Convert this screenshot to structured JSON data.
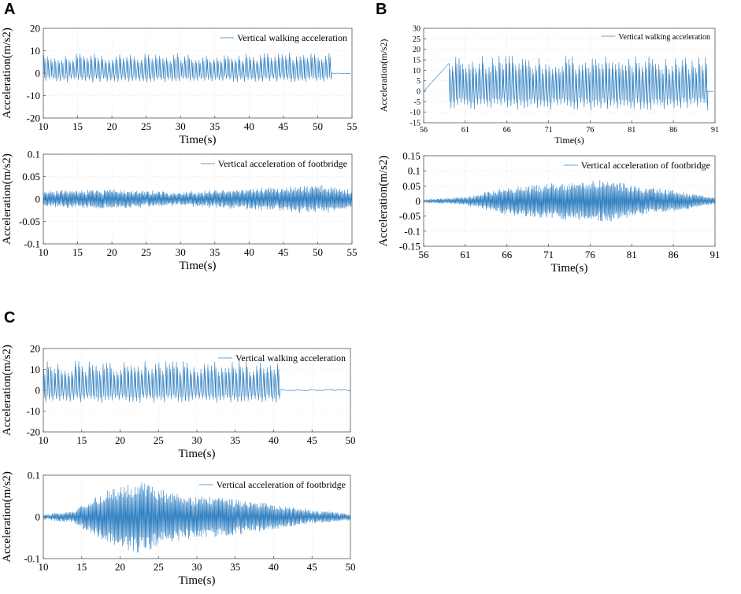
{
  "panels": [
    {
      "label": "A"
    },
    {
      "label": "B"
    },
    {
      "label": "C"
    }
  ],
  "colors": {
    "signal": "#2f7fc1",
    "signal_light": "#7bb6e3",
    "grid": "#dcdcdc",
    "axis": "#555555"
  },
  "chart_data": [
    {
      "panel": "A",
      "type": "line",
      "title": "",
      "xlabel": "Time(s)",
      "ylabel": "Acceleration(m/s2)",
      "legend": "Vertical walking acceleration",
      "legend_position": "top-right",
      "xlim": [
        10,
        55
      ],
      "ylim": [
        -20,
        20
      ],
      "xticks": [
        10,
        15,
        20,
        25,
        30,
        35,
        40,
        45,
        50,
        55
      ],
      "yticks": [
        -20,
        -10,
        0,
        10,
        20
      ],
      "grid": true,
      "signal": {
        "active_start": 10,
        "active_end": 52,
        "amplitude_pos": 9,
        "amplitude_neg": -4,
        "step_frequency_hz": 1.9,
        "rest_level": 0
      }
    },
    {
      "panel": "A",
      "type": "line",
      "title": "",
      "xlabel": "Time(s)",
      "ylabel": "Acceleration(m/s2)",
      "legend": "Vertical acceleration of footbridge",
      "legend_position": "top-right",
      "xlim": [
        10,
        55
      ],
      "ylim": [
        -0.1,
        0.1
      ],
      "xticks": [
        10,
        15,
        20,
        25,
        30,
        35,
        40,
        45,
        50,
        55
      ],
      "yticks": [
        -0.1,
        -0.05,
        0,
        0.05,
        0.1
      ],
      "grid": true,
      "signal": {
        "envelope": [
          [
            10,
            0.018
          ],
          [
            20,
            0.02
          ],
          [
            30,
            0.014
          ],
          [
            40,
            0.022
          ],
          [
            50,
            0.03
          ],
          [
            55,
            0.02
          ]
        ],
        "noise": 0.006
      }
    },
    {
      "panel": "B",
      "type": "line",
      "title": "",
      "xlabel": "Time(s)",
      "ylabel": "Acceleration(m/s2)",
      "legend": "Vertical walking acceleration",
      "legend_position": "top-right",
      "xlim": [
        56,
        91
      ],
      "ylim": [
        -15,
        30
      ],
      "xticks": [
        56,
        61,
        66,
        71,
        76,
        81,
        86,
        91
      ],
      "yticks": [
        -15,
        -10,
        -5,
        0,
        5,
        10,
        15,
        20,
        25,
        30
      ],
      "grid": true,
      "signal": {
        "active_start": 59,
        "active_end": 90,
        "amplitude_pos": 17,
        "amplitude_neg": -9,
        "step_frequency_hz": 2.5,
        "rest_level": 0
      }
    },
    {
      "panel": "B",
      "type": "line",
      "title": "",
      "xlabel": "Time(s)",
      "ylabel": "Acceleration(m/s2)",
      "legend": "Vertical acceleration of footbridge",
      "legend_position": "top-right",
      "xlim": [
        56,
        91
      ],
      "ylim": [
        -0.15,
        0.15
      ],
      "xticks": [
        56,
        61,
        66,
        71,
        76,
        81,
        86,
        91
      ],
      "yticks": [
        -0.15,
        -0.1,
        -0.05,
        0,
        0.05,
        0.1,
        0.15
      ],
      "grid": true,
      "signal": {
        "envelope": [
          [
            56,
            0.005
          ],
          [
            61,
            0.012
          ],
          [
            66,
            0.045
          ],
          [
            71,
            0.058
          ],
          [
            76,
            0.065
          ],
          [
            78,
            0.072
          ],
          [
            81,
            0.05
          ],
          [
            86,
            0.035
          ],
          [
            91,
            0.01
          ]
        ],
        "noise": 0.004
      }
    },
    {
      "panel": "C",
      "type": "line",
      "title": "",
      "xlabel": "Time(s)",
      "ylabel": "Acceleration(m/s2)",
      "legend": "Vertical walking acceleration",
      "legend_position": "top-right",
      "xlim": [
        10,
        50
      ],
      "ylim": [
        -20,
        20
      ],
      "xticks": [
        10,
        15,
        20,
        25,
        30,
        35,
        40,
        45,
        50
      ],
      "yticks": [
        -20,
        -10,
        0,
        10,
        20
      ],
      "grid": true,
      "signal": {
        "active_start": 10,
        "active_end": 40.8,
        "amplitude_pos": 14,
        "amplitude_neg": -6,
        "step_frequency_hz": 2.2,
        "rest_level": 0
      }
    },
    {
      "panel": "C",
      "type": "line",
      "title": "",
      "xlabel": "Time(s)",
      "ylabel": "Acceleration(m/s2)",
      "legend": "Vertical acceleration of footbridge",
      "legend_position": "top-right",
      "xlim": [
        10,
        50
      ],
      "ylim": [
        -0.1,
        0.1
      ],
      "xticks": [
        10,
        15,
        20,
        25,
        30,
        35,
        40,
        45,
        50
      ],
      "yticks": [
        -0.1,
        0,
        0.1
      ],
      "grid": true,
      "signal": {
        "envelope": [
          [
            10,
            0.005
          ],
          [
            14,
            0.015
          ],
          [
            18,
            0.06
          ],
          [
            22.5,
            0.09
          ],
          [
            26,
            0.06
          ],
          [
            30,
            0.05
          ],
          [
            34,
            0.045
          ],
          [
            40,
            0.03
          ],
          [
            45,
            0.015
          ],
          [
            50,
            0.008
          ]
        ],
        "noise": 0.004
      }
    }
  ]
}
